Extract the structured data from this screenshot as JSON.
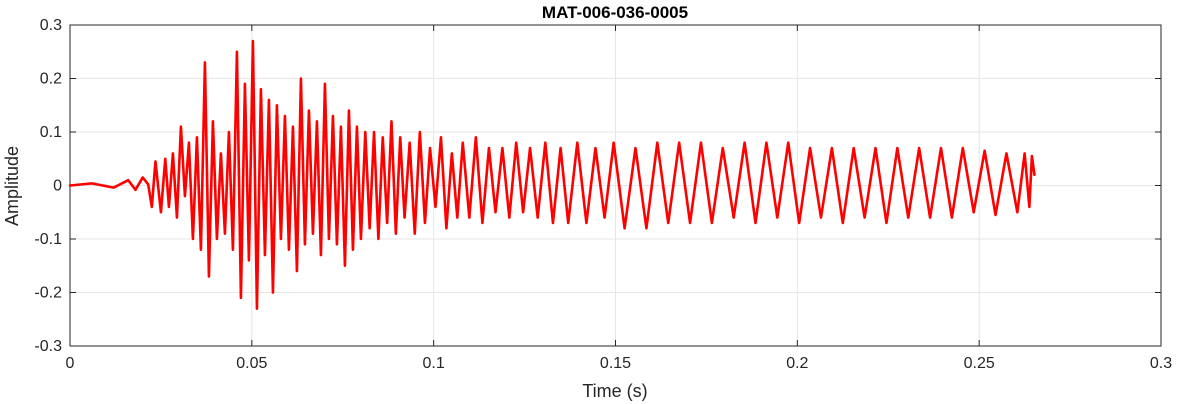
{
  "chart_data": {
    "type": "line",
    "title": "MAT-006-036-0005",
    "xlabel": "Time (s)",
    "ylabel": "Amplitude",
    "xlim": [
      0,
      0.3
    ],
    "ylim": [
      -0.3,
      0.3
    ],
    "xticks": [
      0,
      0.05,
      0.1,
      0.15,
      0.2,
      0.25,
      0.3
    ],
    "xtick_labels": [
      "0",
      "0.05",
      "0.1",
      "0.15",
      "0.2",
      "0.25",
      "0.3"
    ],
    "yticks": [
      -0.3,
      -0.2,
      -0.1,
      0,
      0.1,
      0.2,
      0.3
    ],
    "ytick_labels": [
      "-0.3",
      "-0.2",
      "-0.1",
      "0",
      "0.1",
      "0.2",
      "0.3"
    ],
    "grid": true,
    "colors": {
      "series": "#ff0000",
      "grid": "#e6e6e6",
      "axes": "#262626"
    },
    "series": [
      {
        "x": [
          0,
          0.006,
          0.012,
          0.016,
          0.018,
          0.02,
          0.0215,
          0.0225,
          0.0235,
          0.025,
          0.0262,
          0.0272,
          0.0283,
          0.0294,
          0.0305,
          0.0316,
          0.0327,
          0.0338,
          0.0349,
          0.036,
          0.0371,
          0.0382,
          0.0393,
          0.0404,
          0.0415,
          0.0426,
          0.0437,
          0.0448,
          0.0459,
          0.047,
          0.0481,
          0.0492,
          0.0503,
          0.0514,
          0.0525,
          0.0536,
          0.0547,
          0.0558,
          0.0569,
          0.058,
          0.0591,
          0.0602,
          0.0613,
          0.0624,
          0.0635,
          0.0646,
          0.0657,
          0.0668,
          0.0679,
          0.069,
          0.0701,
          0.0712,
          0.0723,
          0.0734,
          0.0745,
          0.0756,
          0.0767,
          0.0778,
          0.0789,
          0.08,
          0.0812,
          0.0824,
          0.0836,
          0.0848,
          0.086,
          0.0872,
          0.0884,
          0.0896,
          0.0908,
          0.092,
          0.0934,
          0.0948,
          0.0962,
          0.0976,
          0.099,
          0.1005,
          0.102,
          0.1035,
          0.105,
          0.1065,
          0.108,
          0.1098,
          0.1116,
          0.1134,
          0.1152,
          0.117,
          0.1189,
          0.1208,
          0.1227,
          0.1246,
          0.1265,
          0.1286,
          0.1307,
          0.1328,
          0.1349,
          0.137,
          0.1395,
          0.142,
          0.1445,
          0.147,
          0.1495,
          0.1525,
          0.1555,
          0.1585,
          0.1615,
          0.1645,
          0.1675,
          0.1705,
          0.1735,
          0.1765,
          0.1795,
          0.1825,
          0.1855,
          0.1885,
          0.1915,
          0.1945,
          0.1975,
          0.2005,
          0.2035,
          0.2065,
          0.2095,
          0.2125,
          0.2155,
          0.2185,
          0.2215,
          0.2245,
          0.2275,
          0.2305,
          0.2335,
          0.2365,
          0.2395,
          0.2425,
          0.2455,
          0.2485,
          0.2515,
          0.2545,
          0.2575,
          0.2605,
          0.2625,
          0.2638,
          0.2645,
          0.2652
        ],
        "y": [
          0,
          0.004,
          -0.004,
          0.01,
          -0.008,
          0.015,
          0.002,
          -0.04,
          0.045,
          -0.05,
          0.05,
          -0.04,
          0.06,
          -0.06,
          0.11,
          -0.02,
          0.08,
          -0.1,
          0.09,
          -0.12,
          0.23,
          -0.17,
          0.12,
          -0.1,
          0.06,
          -0.09,
          0.1,
          -0.12,
          0.25,
          -0.21,
          0.19,
          -0.14,
          0.27,
          -0.23,
          0.18,
          -0.13,
          0.16,
          -0.2,
          0.15,
          -0.1,
          0.13,
          -0.12,
          0.11,
          -0.16,
          0.2,
          -0.11,
          0.14,
          -0.09,
          0.12,
          -0.13,
          0.19,
          -0.1,
          0.13,
          -0.11,
          0.11,
          -0.15,
          0.14,
          -0.12,
          0.11,
          -0.1,
          0.1,
          -0.08,
          0.1,
          -0.1,
          0.09,
          -0.07,
          0.12,
          -0.09,
          0.09,
          -0.06,
          0.08,
          -0.09,
          0.1,
          -0.07,
          0.07,
          -0.04,
          0.09,
          -0.08,
          0.06,
          -0.06,
          0.08,
          -0.06,
          0.09,
          -0.07,
          0.07,
          -0.05,
          0.07,
          -0.06,
          0.08,
          -0.05,
          0.07,
          -0.06,
          0.08,
          -0.07,
          0.07,
          -0.07,
          0.08,
          -0.07,
          0.07,
          -0.06,
          0.08,
          -0.08,
          0.07,
          -0.08,
          0.08,
          -0.07,
          0.08,
          -0.07,
          0.08,
          -0.07,
          0.07,
          -0.06,
          0.08,
          -0.07,
          0.08,
          -0.06,
          0.08,
          -0.07,
          0.07,
          -0.06,
          0.07,
          -0.07,
          0.07,
          -0.06,
          0.07,
          -0.07,
          0.07,
          -0.06,
          0.07,
          -0.06,
          0.07,
          -0.06,
          0.07,
          -0.05,
          0.065,
          -0.055,
          0.06,
          -0.05,
          0.06,
          -0.04,
          0.055,
          0.02
        ]
      }
    ]
  }
}
